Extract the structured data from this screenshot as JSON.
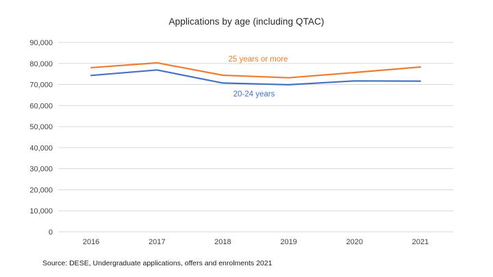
{
  "chart_data": {
    "type": "line",
    "title": "Applications by age (including QTAC)",
    "categories": [
      "2016",
      "2017",
      "2018",
      "2019",
      "2020",
      "2021"
    ],
    "series": [
      {
        "name": "25 years or more",
        "color": "#ED7D31",
        "values": [
          78000,
          80300,
          74400,
          73200,
          75700,
          78300
        ]
      },
      {
        "name": "20-24 years",
        "color": "#4472C4",
        "values": [
          74300,
          76900,
          70700,
          69900,
          71700,
          71600
        ]
      }
    ],
    "xlabel": "",
    "ylabel": "",
    "ylim": [
      0,
      90000
    ],
    "ytick_step": 10000,
    "ytick_labels": [
      "0",
      "10,000",
      "20,000",
      "30,000",
      "40,000",
      "50,000",
      "60,000",
      "70,000",
      "80,000",
      "90,000"
    ],
    "grid": "horizontal",
    "legend_position": "inline-data-labels"
  },
  "source_note": "Source: DESE, Undergraduate applications, offers and enrolments 2021",
  "colors": {
    "gridline": "#D9D9D9",
    "axis_text": "#404040",
    "title_text": "#262626",
    "background": "#FFFFFF"
  }
}
